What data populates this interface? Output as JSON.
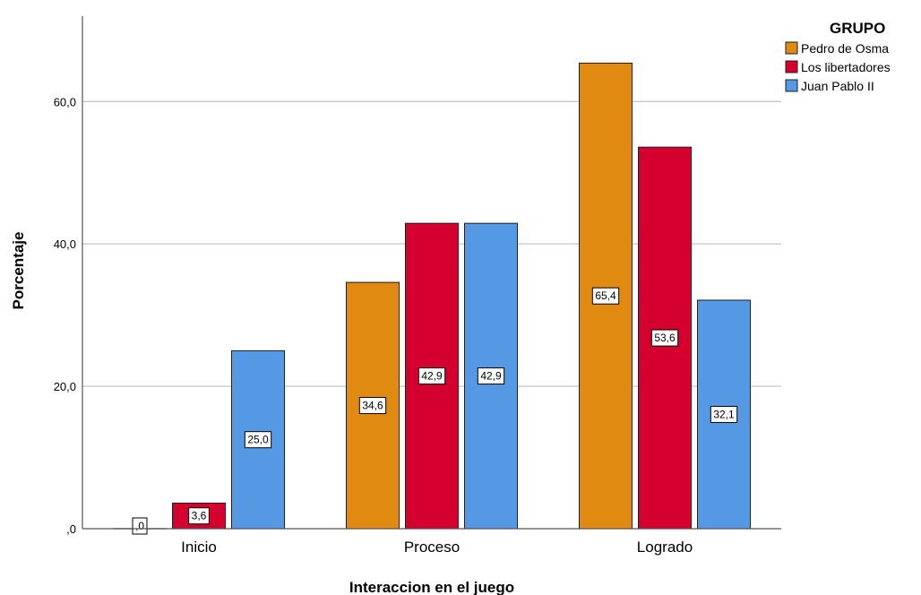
{
  "chart_data": {
    "type": "bar",
    "categories": [
      "Inicio",
      "Proceso",
      "Logrado"
    ],
    "series": [
      {
        "name": "Pedro de Osma",
        "values": [
          0,
          34.6,
          65.4
        ],
        "labels": [
          ",0",
          "34,6",
          "65,4"
        ],
        "color": "#e08a12"
      },
      {
        "name": "Los libertadores",
        "values": [
          3.6,
          42.9,
          53.6
        ],
        "labels": [
          "3,6",
          "42,9",
          "53,6"
        ],
        "color": "#d4002e"
      },
      {
        "name": "Juan Pablo II",
        "values": [
          25.0,
          42.9,
          32.1
        ],
        "labels": [
          "25,0",
          "42,9",
          "32,1"
        ],
        "color": "#5598e4"
      }
    ],
    "xlabel": "Interaccion en el juego",
    "ylabel": "Porcentaje",
    "ylim": [
      0,
      72
    ],
    "yticks": [
      0,
      20,
      40,
      60
    ],
    "ytick_labels": [
      ",0",
      "20,0",
      "40,0",
      "60,0"
    ],
    "legend_title": "GRUPO",
    "legend_position": "top-right",
    "grid": true
  }
}
